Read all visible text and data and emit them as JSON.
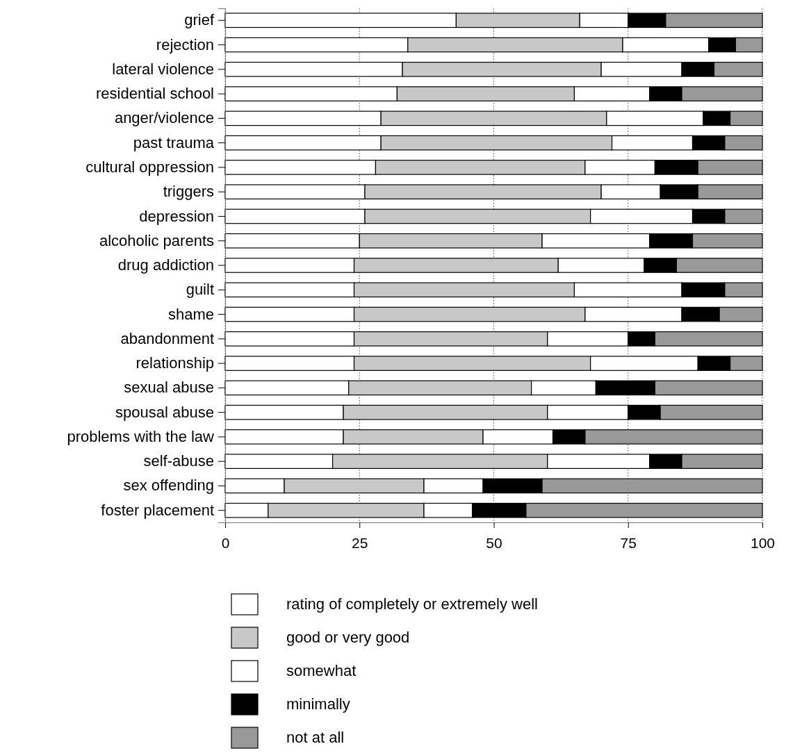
{
  "chart_data": {
    "type": "bar",
    "orientation": "horizontal",
    "stacked": true,
    "categories": [
      "grief",
      "rejection",
      "lateral violence",
      "residential school",
      "anger/violence",
      "past trauma",
      "cultural oppression",
      "triggers",
      "depression",
      "alcoholic parents",
      "drug addiction",
      "guilt",
      "shame",
      "abandonment",
      "relationship",
      "sexual abuse",
      "spousal abuse",
      "problems with the law",
      "self-abuse",
      "sex offending",
      "foster placement"
    ],
    "series": [
      {
        "name": "rating of completely or extremely well",
        "color": "#ffffff",
        "values": [
          43,
          34,
          33,
          32,
          29,
          29,
          28,
          26,
          26,
          25,
          24,
          24,
          24,
          24,
          24,
          23,
          22,
          22,
          20,
          11,
          8
        ]
      },
      {
        "name": "good or very good",
        "color": "#c8c8c8",
        "values": [
          23,
          40,
          37,
          33,
          42,
          43,
          39,
          44,
          42,
          34,
          38,
          41,
          43,
          36,
          44,
          34,
          38,
          26,
          40,
          26,
          29
        ]
      },
      {
        "name": "somewhat",
        "color": "#ffffff",
        "values": [
          9,
          16,
          15,
          14,
          18,
          15,
          13,
          11,
          19,
          20,
          16,
          20,
          18,
          15,
          20,
          12,
          15,
          13,
          19,
          11,
          9
        ]
      },
      {
        "name": "minimally",
        "color": "#000000",
        "values": [
          7,
          5,
          6,
          6,
          5,
          6,
          8,
          7,
          6,
          8,
          6,
          8,
          7,
          5,
          6,
          11,
          6,
          6,
          6,
          11,
          10
        ]
      },
      {
        "name": "not at all",
        "color": "#999999",
        "values": [
          18,
          5,
          9,
          15,
          6,
          7,
          12,
          12,
          7,
          13,
          16,
          7,
          8,
          20,
          6,
          20,
          19,
          33,
          15,
          41,
          44
        ]
      }
    ],
    "xlim": [
      0,
      100
    ],
    "xticks": [
      0,
      25,
      50,
      75,
      100
    ],
    "grid": "x",
    "legend": "bottom"
  }
}
